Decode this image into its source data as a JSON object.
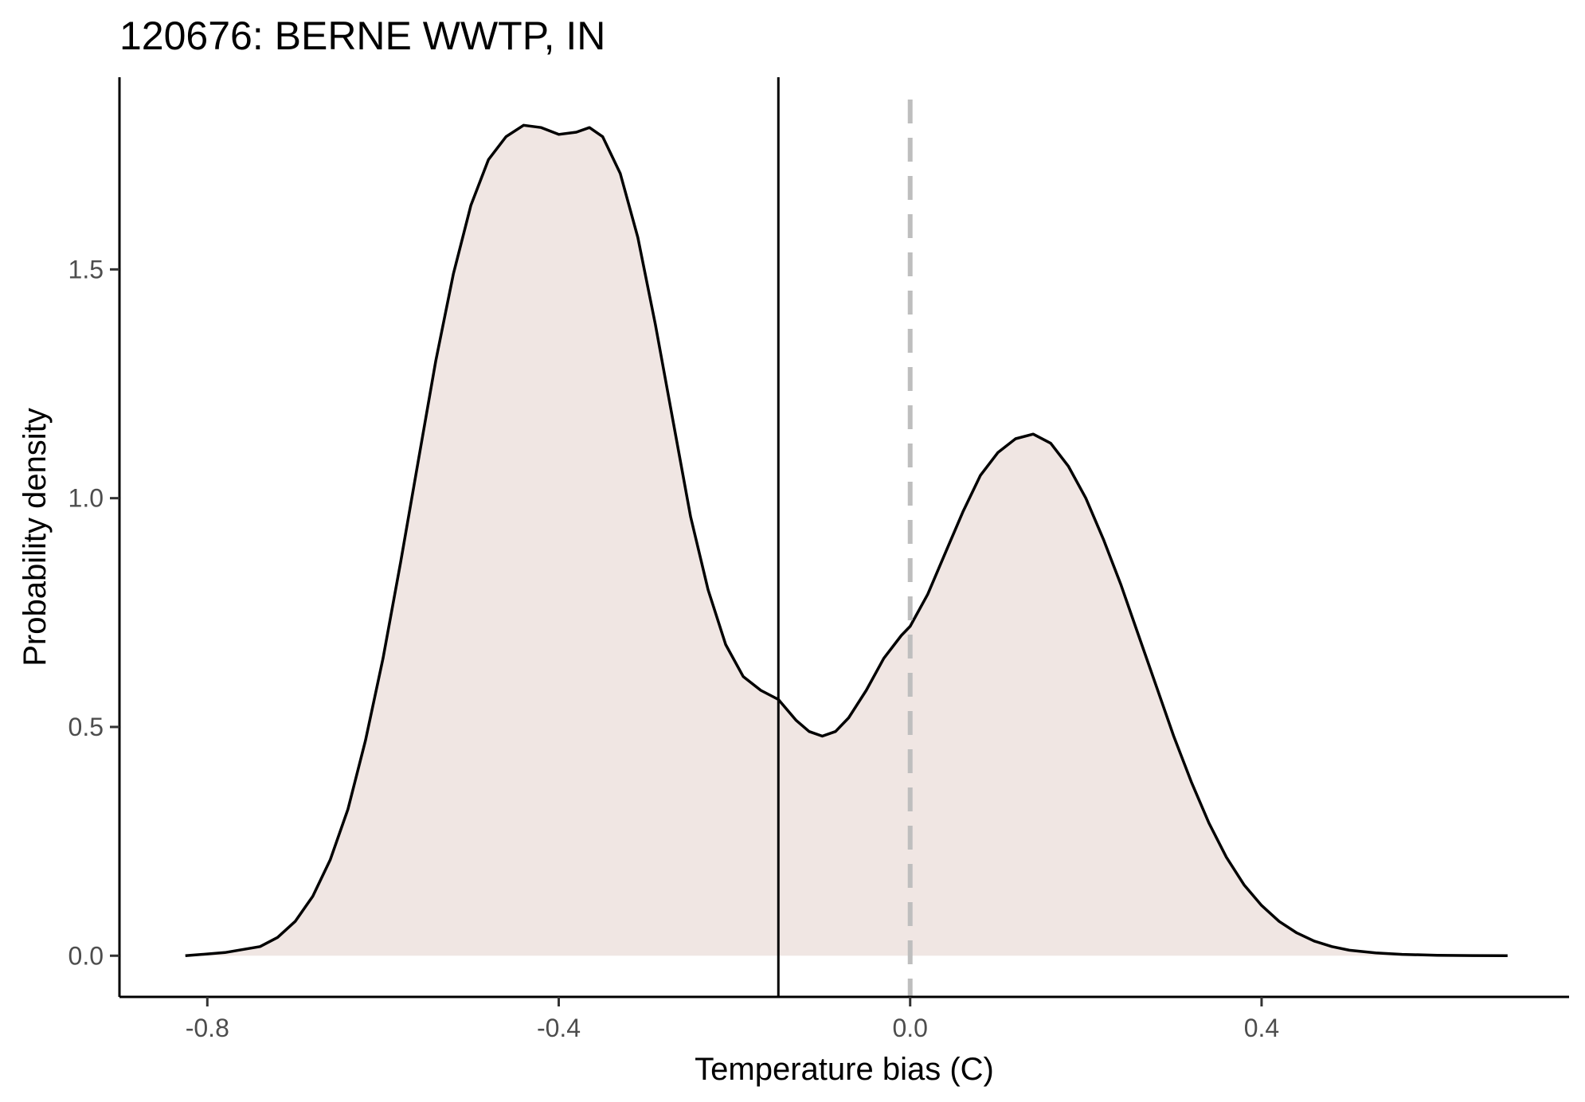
{
  "chart_data": {
    "type": "area",
    "title": "120676: BERNE WWTP, IN",
    "xlabel": "Temperature bias (C)",
    "ylabel": "Probability density",
    "xlim": [
      -0.9,
      0.75
    ],
    "ylim": [
      -0.09,
      1.92
    ],
    "x_ticks": [
      -0.8,
      -0.4,
      0.0,
      0.4
    ],
    "x_tick_labels": [
      "-0.8",
      "-0.4",
      "0.0",
      "0.4"
    ],
    "y_ticks": [
      0.0,
      0.5,
      1.0,
      1.5
    ],
    "y_tick_labels": [
      "0.0",
      "0.5",
      "1.0",
      "1.5"
    ],
    "grid": false,
    "series": [
      {
        "fill_color": "#f0e6e3",
        "line_color": "#000000",
        "x": [
          -0.825,
          -0.78,
          -0.74,
          -0.72,
          -0.7,
          -0.68,
          -0.66,
          -0.64,
          -0.62,
          -0.6,
          -0.58,
          -0.56,
          -0.54,
          -0.52,
          -0.5,
          -0.48,
          -0.46,
          -0.44,
          -0.42,
          -0.4,
          -0.38,
          -0.365,
          -0.35,
          -0.33,
          -0.31,
          -0.29,
          -0.27,
          -0.25,
          -0.23,
          -0.21,
          -0.19,
          -0.17,
          -0.15,
          -0.13,
          -0.115,
          -0.1,
          -0.085,
          -0.07,
          -0.05,
          -0.03,
          -0.01,
          0.0,
          0.02,
          0.04,
          0.06,
          0.08,
          0.1,
          0.12,
          0.14,
          0.16,
          0.18,
          0.2,
          0.22,
          0.24,
          0.26,
          0.28,
          0.3,
          0.32,
          0.34,
          0.36,
          0.38,
          0.4,
          0.42,
          0.44,
          0.46,
          0.48,
          0.5,
          0.53,
          0.56,
          0.6,
          0.64,
          0.68
        ],
        "y": [
          0.0,
          0.007,
          0.02,
          0.04,
          0.075,
          0.13,
          0.21,
          0.32,
          0.47,
          0.65,
          0.86,
          1.08,
          1.3,
          1.49,
          1.64,
          1.74,
          1.79,
          1.815,
          1.81,
          1.795,
          1.8,
          1.81,
          1.79,
          1.71,
          1.57,
          1.38,
          1.17,
          0.96,
          0.8,
          0.68,
          0.61,
          0.58,
          0.56,
          0.515,
          0.49,
          0.48,
          0.49,
          0.52,
          0.58,
          0.65,
          0.7,
          0.72,
          0.79,
          0.88,
          0.97,
          1.05,
          1.1,
          1.13,
          1.14,
          1.12,
          1.07,
          1.0,
          0.91,
          0.81,
          0.7,
          0.59,
          0.48,
          0.38,
          0.29,
          0.215,
          0.155,
          0.11,
          0.075,
          0.05,
          0.032,
          0.02,
          0.012,
          0.006,
          0.003,
          0.001,
          0.0003,
          0.0
        ]
      }
    ],
    "vlines": [
      {
        "x": -0.15,
        "color": "#000000",
        "style": "solid"
      },
      {
        "x": 0.0,
        "color": "#bebebe",
        "style": "dashed"
      }
    ]
  }
}
